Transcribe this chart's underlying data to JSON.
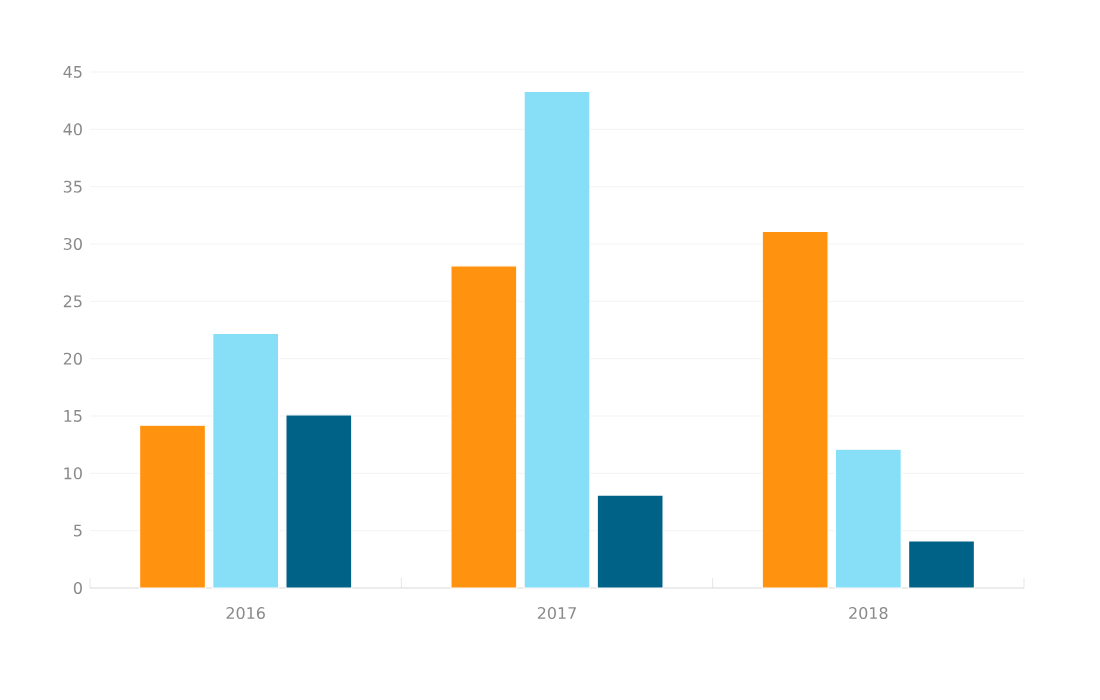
{
  "chart_data": {
    "type": "bar",
    "categories": [
      "2016",
      "2017",
      "2018"
    ],
    "series": [
      {
        "color": "#ff920f",
        "values": [
          14.2,
          28.1,
          31.1
        ]
      },
      {
        "color": "#86dff7",
        "values": [
          22.2,
          43.3,
          12.1
        ]
      },
      {
        "color": "#006287",
        "values": [
          15.1,
          8.1,
          4.1
        ]
      }
    ],
    "ylim": [
      0,
      45
    ],
    "yticks": [
      0,
      5,
      10,
      15,
      20,
      25,
      30,
      35,
      40,
      45
    ],
    "grid": "y"
  }
}
